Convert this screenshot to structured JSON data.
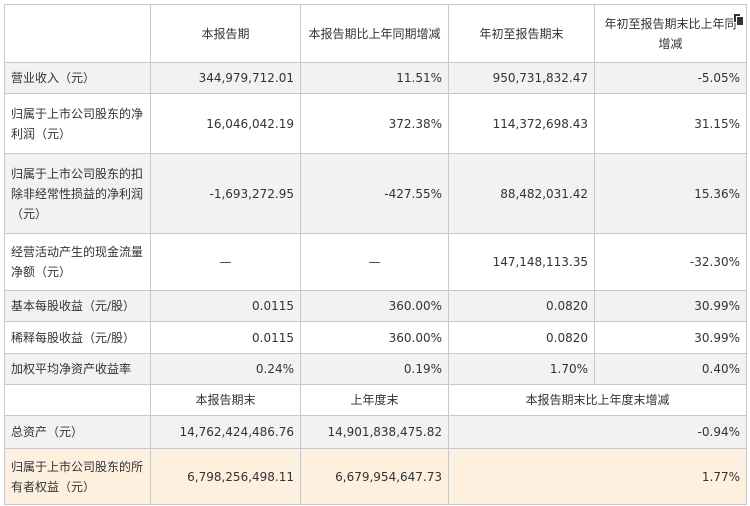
{
  "header": {
    "col_empty": "",
    "col1": "本报告期",
    "col2": "本报告期比上年同期增减",
    "col3": "年初至报告期末",
    "col4_line1": "年初至报告期末比上年同",
    "col4_line2": "增减"
  },
  "rows": [
    {
      "label": "营业收入（元）",
      "v1": "344,979,712.01",
      "v2": "11.51%",
      "v3": "950,731,832.47",
      "v4": "-5.05%"
    },
    {
      "label": "归属于上市公司股东的净利润（元）",
      "v1": "16,046,042.19",
      "v2": "372.38%",
      "v3": "114,372,698.43",
      "v4": "31.15%"
    },
    {
      "label": "归属于上市公司股东的扣除非经常性损益的净利润（元）",
      "v1": "-1,693,272.95",
      "v2": "-427.55%",
      "v3": "88,482,031.42",
      "v4": "15.36%"
    },
    {
      "label": "经营活动产生的现金流量净额（元）",
      "v1": "—",
      "v2": "—",
      "v3": "147,148,113.35",
      "v4": "-32.30%"
    },
    {
      "label": "基本每股收益（元/股）",
      "v1": "0.0115",
      "v2": "360.00%",
      "v3": "0.0820",
      "v4": "30.99%"
    },
    {
      "label": "稀释每股收益（元/股）",
      "v1": "0.0115",
      "v2": "360.00%",
      "v3": "0.0820",
      "v4": "30.99%"
    },
    {
      "label": "加权平均净资产收益率",
      "v1": "0.24%",
      "v2": "0.19%",
      "v3": "1.70%",
      "v4": "0.40%"
    }
  ],
  "header2": {
    "col1": "本报告期末",
    "col2": "上年度末",
    "col3": "本报告期末比上年度末增减"
  },
  "rows2": [
    {
      "label": "总资产（元）",
      "v1": "14,762,424,486.76",
      "v2": "14,901,838,475.82",
      "v3": "-0.94%"
    },
    {
      "label": "归属于上市公司股东的所有者权益（元）",
      "v1": "6,798,256,498.11",
      "v2": "6,679,954,647.73",
      "v3": "1.77%"
    }
  ],
  "icons": {
    "copy": "copy-icon"
  }
}
